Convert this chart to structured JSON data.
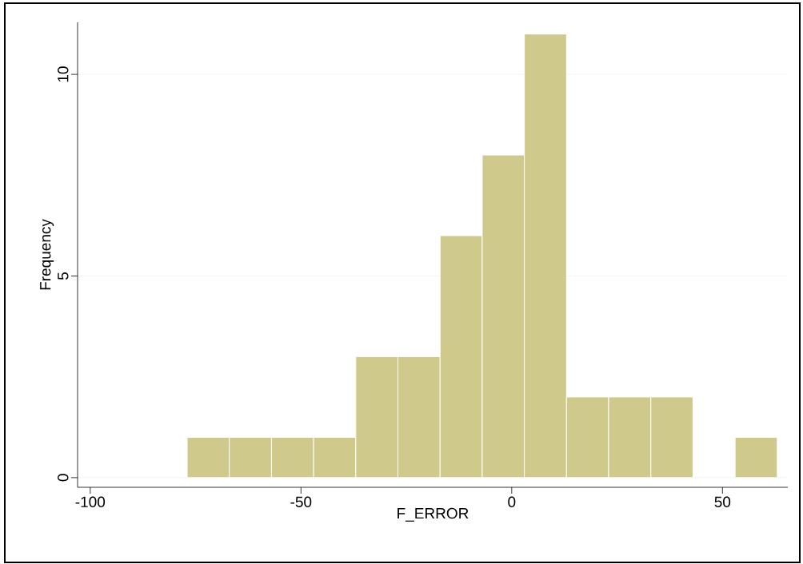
{
  "chart_data": {
    "type": "histogram",
    "bins": [
      -77,
      -67,
      -57,
      -47,
      -37,
      -27,
      -17,
      -7,
      3,
      13,
      23,
      33,
      43,
      53,
      63
    ],
    "values": [
      1,
      1,
      1,
      1,
      3,
      3,
      6,
      8,
      11,
      2,
      2,
      2,
      0,
      1
    ],
    "color": "#cfc98b",
    "xlabel": "F_ERROR",
    "ylabel": "Frequency",
    "xlim": [
      -103,
      65.5
    ],
    "ylim": [
      -0.24,
      11.29
    ],
    "xticks": [
      -100,
      -50,
      0,
      50
    ],
    "yticks": [
      0,
      5,
      10
    ],
    "grid": "y"
  }
}
